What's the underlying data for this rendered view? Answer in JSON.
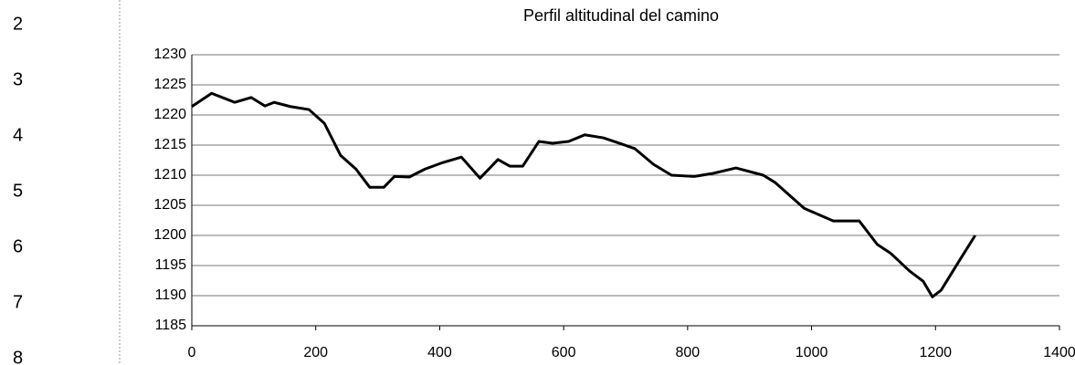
{
  "row_numbers": [
    2,
    3,
    4,
    5,
    6,
    7,
    8
  ],
  "chart_data": {
    "type": "line",
    "title": "Perfil altitudinal del camino",
    "x": [
      0,
      32,
      69,
      96,
      118,
      133,
      159,
      189,
      214,
      240,
      265,
      287,
      310,
      327,
      351,
      376,
      405,
      435,
      465,
      494,
      513,
      534,
      560,
      582,
      608,
      634,
      664,
      693,
      715,
      745,
      774,
      811,
      841,
      878,
      922,
      941,
      988,
      1035,
      1077,
      1106,
      1128,
      1158,
      1180,
      1195,
      1209,
      1239,
      1264
    ],
    "series": [
      {
        "name": null,
        "color": "#000000",
        "values": [
          1221.4,
          1223.6,
          1222.1,
          1222.9,
          1221.5,
          1222.1,
          1221.4,
          1220.9,
          1218.6,
          1213.3,
          1211,
          1208,
          1208,
          1209.8,
          1209.7,
          1211,
          1212.1,
          1213,
          1209.5,
          1212.6,
          1211.5,
          1211.5,
          1215.6,
          1215.3,
          1215.6,
          1216.7,
          1216.2,
          1215.2,
          1214.4,
          1211.8,
          1210,
          1209.8,
          1210.3,
          1211.2,
          1210,
          1208.8,
          1204.5,
          1202.4,
          1202.4,
          1198.5,
          1197,
          1194.1,
          1192.4,
          1189.8,
          1190.9,
          1195.9,
          1200
        ]
      }
    ],
    "xlim": [
      0,
      1400
    ],
    "xticks": [
      0,
      200,
      400,
      600,
      800,
      1000,
      1200,
      1400
    ],
    "ylim": [
      1185,
      1230
    ],
    "yticks": [
      1185,
      1190,
      1195,
      1200,
      1205,
      1210,
      1215,
      1220,
      1225,
      1230
    ],
    "grid": true
  }
}
